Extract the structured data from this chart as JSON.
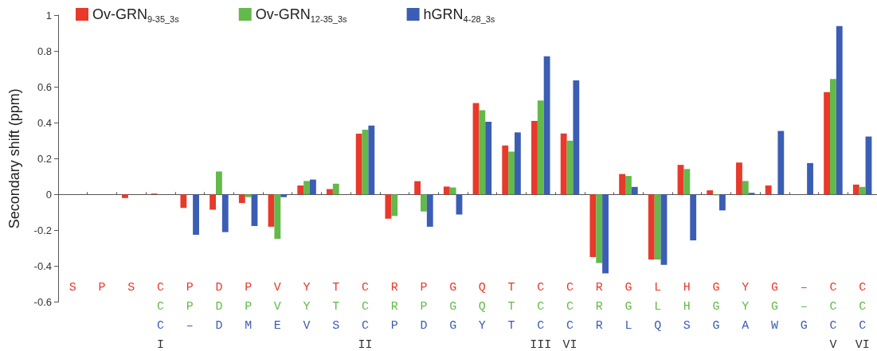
{
  "chart_data": {
    "type": "bar",
    "ylabel": "Secondary shift (ppm)",
    "categories": [
      "S",
      "P",
      "S",
      "C\nC\nC\nI",
      "P\nP\n–",
      "D\nD\nD",
      "P\nP\nM",
      "V\nV\nE",
      "Y\nY\nV",
      "T\nT\nS",
      "C\nC\nC\nII",
      "R\nR\nP",
      "P\nP\nD",
      "G\nG\nG",
      "Q\nQ\nY",
      "T\nT\nT",
      "C\nC\nC\nIII",
      "C\nC\nC\nVI",
      "R\nR\nR",
      "G\nG\nL",
      "L\nL\nQ",
      "H\nH\nS",
      "G\nG\nG",
      "Y\nY\nA",
      "G\nG\nW",
      "–\n–\nG",
      "C\nC\nC\nV",
      "C\nC\nC\nVI"
    ],
    "series": [
      {
        "name": "Ov-GRN$_{9-35_3s}$",
        "color": "#e8392b",
        "values": [
          null,
          null,
          -0.02,
          0.005,
          -0.075,
          -0.085,
          -0.048,
          -0.18,
          0.05,
          0.03,
          0.339,
          -0.135,
          0.074,
          0.044,
          0.51,
          0.273,
          0.41,
          0.34,
          -0.349,
          0.114,
          -0.363,
          0.165,
          0.023,
          0.178,
          0.05,
          null,
          0.571,
          0.055
        ]
      },
      {
        "name": "Ov-GRN$_{12-35_3s}$",
        "color": "#63b94a",
        "values": [
          null,
          null,
          null,
          null,
          null,
          0.128,
          -0.015,
          -0.248,
          0.075,
          0.06,
          0.361,
          -0.12,
          -0.095,
          0.039,
          0.47,
          0.239,
          0.524,
          0.3,
          -0.382,
          0.103,
          -0.363,
          0.142,
          -0.005,
          0.075,
          null,
          null,
          0.644,
          0.042
        ]
      },
      {
        "name": "hGRN$_{4-28_3s}$",
        "color": "#3b5db3",
        "values": [
          null,
          null,
          null,
          null,
          -0.225,
          -0.21,
          -0.176,
          -0.015,
          0.083,
          null,
          0.384,
          null,
          -0.18,
          -0.112,
          0.405,
          0.346,
          0.77,
          0.636,
          -0.44,
          0.042,
          -0.393,
          -0.256,
          -0.089,
          0.009,
          0.354,
          0.175,
          0.939,
          0.323
        ]
      }
    ],
    "ylim": [
      -0.6,
      1
    ],
    "yticks": [
      -0.6,
      -0.4,
      -0.2,
      0,
      0.2,
      0.4,
      0.6,
      0.8,
      1
    ],
    "legend": "top left"
  }
}
